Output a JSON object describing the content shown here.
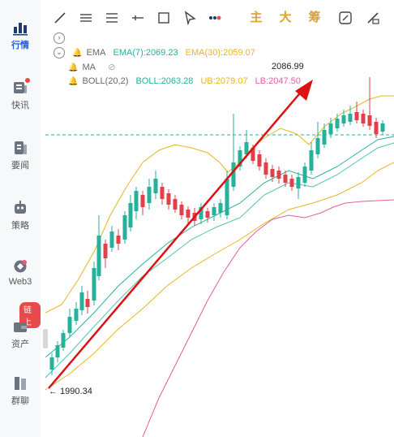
{
  "sidebar": {
    "items": [
      {
        "label": "行情",
        "icon": "bar-chart-icon",
        "active": true
      },
      {
        "label": "快讯",
        "icon": "news-flash-icon",
        "dot": true
      },
      {
        "label": "要闻",
        "icon": "document-icon"
      },
      {
        "label": "策略",
        "icon": "robot-icon"
      },
      {
        "label": "Web3",
        "icon": "web3-icon"
      },
      {
        "label": "资产",
        "icon": "wallet-icon"
      },
      {
        "label": "群聊",
        "icon": "chat-icon"
      }
    ],
    "badge": "链上"
  },
  "toolbar": {
    "tools": [
      "line-tool-icon",
      "parallel-lines-icon",
      "horizontal-lines-icon",
      "horizontal-ray-icon",
      "rectangle-icon",
      "cursor-icon",
      "more-dots-icon"
    ],
    "labels": [
      "主",
      "大",
      "筹"
    ],
    "right_tools": [
      "screenshot-icon",
      "clear-drawing-icon"
    ]
  },
  "indicators": {
    "ema": {
      "name": "EMA",
      "ema7": "EMA(7):2069.23",
      "ema30": "EMA(30):2059.07"
    },
    "ma": {
      "name": "MA"
    },
    "boll": {
      "name": "BOLL(20,2)",
      "mid": "BOLL:2063.28",
      "ub": "UB:2079.07",
      "lb": "LB:2047.50"
    }
  },
  "chart_data": {
    "type": "candlestick",
    "high_label": "2086.99",
    "low_label": "← 1990.34",
    "colors": {
      "up": "#26b19a",
      "down": "#e0404a",
      "ema7": "#26b19a",
      "ema30": "#e8b520",
      "lb": "#e05fa0",
      "arrow": "#dd1111"
    }
  }
}
